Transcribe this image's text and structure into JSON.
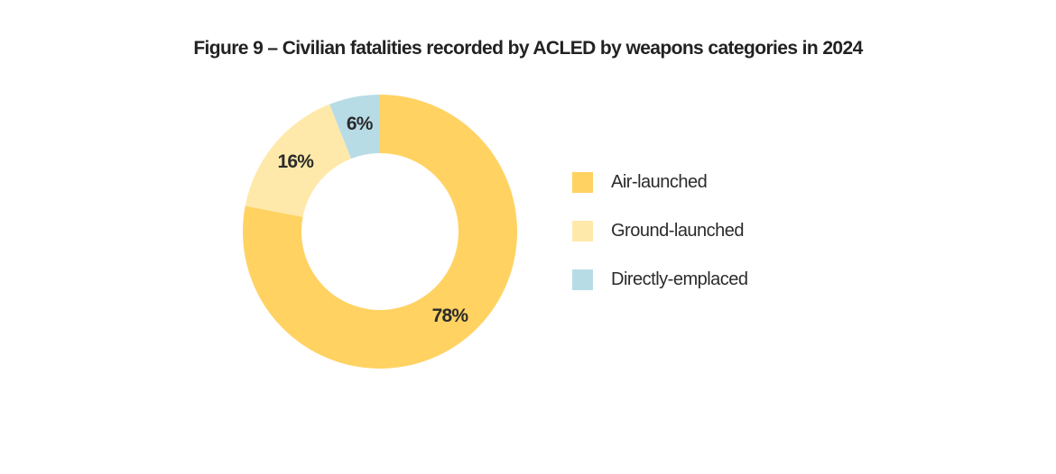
{
  "chart_data": {
    "type": "pie",
    "title": "Figure 9 – Civilian fatalities recorded by ACLED by weapons categories in 2024",
    "donut": true,
    "legend_position": "right",
    "categories": [
      "Air-launched",
      "Ground-launched",
      "Directly-emplaced"
    ],
    "values": [
      78,
      16,
      6
    ],
    "data_labels": [
      "78%",
      "16%",
      "6%"
    ],
    "colors": [
      "#FFD262",
      "#FFE9AA",
      "#B8DCE6"
    ]
  }
}
